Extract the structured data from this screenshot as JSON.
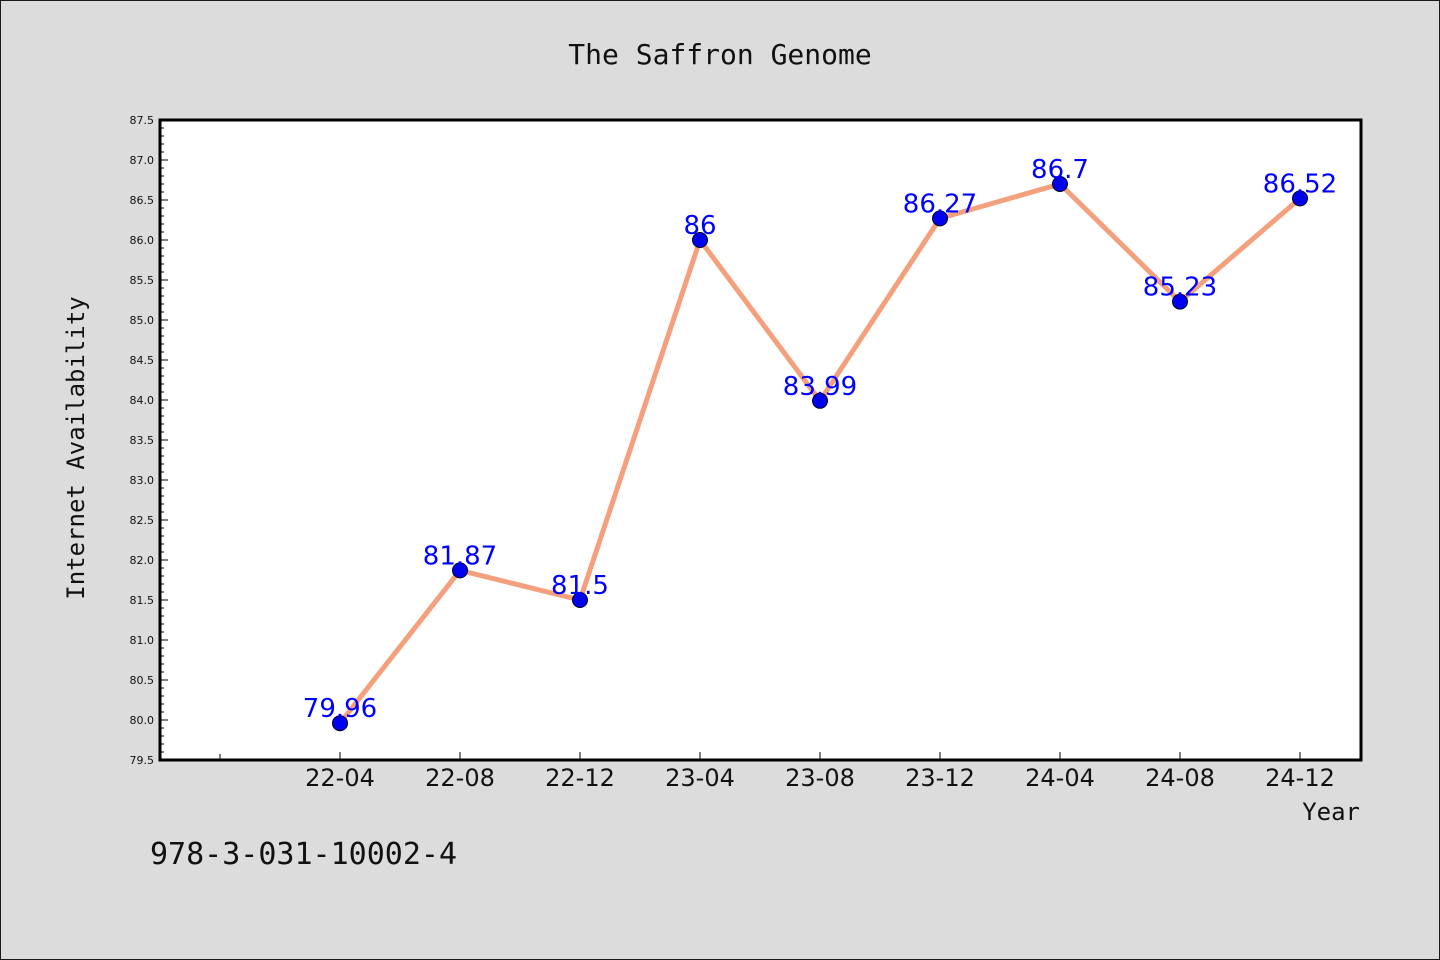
{
  "chart_data": {
    "type": "line",
    "title": "The Saffron Genome",
    "xlabel": "Year",
    "ylabel": "Internet Availability",
    "categories": [
      "22-04",
      "22-08",
      "22-12",
      "23-04",
      "23-08",
      "23-12",
      "24-04",
      "24-08",
      "24-12"
    ],
    "values": [
      79.96,
      81.87,
      81.5,
      86,
      83.99,
      86.27,
      86.7,
      85.23,
      86.52
    ],
    "data_labels": [
      "79.96",
      "81.87",
      "81.5",
      "86",
      "83.99",
      "86.27",
      "86.7",
      "85.23",
      "86.52"
    ],
    "ylim": [
      79.5,
      87.5
    ],
    "yticks": [
      "79.5",
      "80.0",
      "80.5",
      "81.0",
      "81.5",
      "82.0",
      "82.5",
      "83.0",
      "83.5",
      "84.0",
      "84.5",
      "85.0",
      "85.5",
      "86.0",
      "86.5",
      "87.0",
      "87.5"
    ],
    "grid": false,
    "line_color": "#f4a07c",
    "marker_color": "#0000ee",
    "label_color": "#0000ff",
    "background_color": "#dcdcdc",
    "plot_background_color": "#ffffff"
  },
  "footer_text": "978-3-031-10002-4"
}
